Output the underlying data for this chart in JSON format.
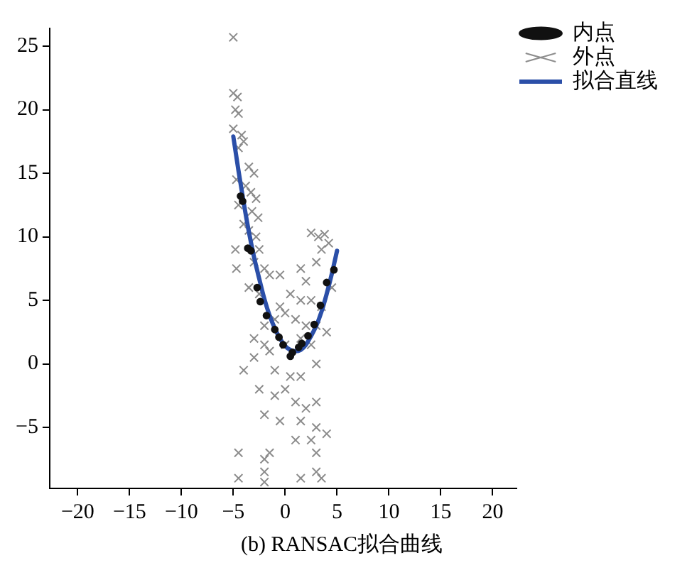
{
  "chart_data": {
    "type": "scatter",
    "title": "(b) RANSAC拟合曲线",
    "xlim": [
      -22.7,
      22.3
    ],
    "xticks": [
      {
        "value": -20,
        "label": "−20"
      },
      {
        "value": -15,
        "label": "−15"
      },
      {
        "value": -10,
        "label": "−10"
      },
      {
        "value": -5,
        "label": "−5"
      },
      0,
      5,
      10,
      15,
      20
    ],
    "ylim": [
      -9.8,
      26.4
    ],
    "yticks": [
      {
        "value": -5,
        "label": "−5"
      },
      0,
      5,
      10,
      15,
      20,
      25
    ],
    "grid": false,
    "legend": "top right",
    "series": [
      {
        "name": "内点",
        "type": "scatter",
        "marker": "circle",
        "color": "#111111",
        "x": [
          -4.3,
          -4.1,
          -3.6,
          -3.3,
          -2.7,
          -2.4,
          -1.8,
          -1,
          -0.6,
          -0.2,
          0.5,
          0.7,
          1.3,
          1.6,
          2.2,
          2.8,
          3.4,
          4,
          4.7
        ],
        "values": [
          13.2,
          12.8,
          9.1,
          8.9,
          6.0,
          4.9,
          3.8,
          2.7,
          2.1,
          1.5,
          0.6,
          0.9,
          1.3,
          1.6,
          2.2,
          3.1,
          4.6,
          6.4,
          7.4
        ]
      },
      {
        "name": "外点",
        "type": "scatter",
        "marker": "cross",
        "color": "#8c8c8c",
        "x": [
          -5,
          -5,
          -4.6,
          -4.8,
          -4.5,
          -5,
          -4.2,
          -4,
          -4.5,
          -3.5,
          -3,
          -4.7,
          -3.8,
          -3.3,
          -2.8,
          -4.5,
          -3.2,
          -2.6,
          -4,
          -3.5,
          -2.8,
          -4.8,
          -2.5,
          -3,
          -2,
          -4.7,
          -1.5,
          -3.5,
          -2.5,
          2.5,
          3.2,
          3.8,
          3.5,
          4.2,
          3,
          1.5,
          -0.5,
          2,
          4.5,
          0.5,
          1.5,
          2.5,
          3.5,
          -0.5,
          0,
          1,
          -1,
          2,
          3,
          4,
          -2,
          -3,
          -2,
          -1.5,
          0,
          1.5,
          2.5,
          -4,
          -3,
          -1,
          0.5,
          1.5,
          3,
          -2.5,
          -1,
          0,
          1,
          2,
          3,
          -2,
          -0.5,
          1.5,
          3,
          4,
          2.5,
          -4.5,
          -2,
          -1.5,
          1,
          3,
          -2,
          -4.5,
          -2,
          1.5,
          3,
          3.5
        ],
        "values": [
          25.7,
          21.3,
          21,
          20,
          19.7,
          18.5,
          18,
          17.5,
          17,
          15.5,
          15,
          14.5,
          14,
          13.5,
          13,
          12.5,
          12,
          11.5,
          11,
          10.5,
          10,
          9,
          9,
          8,
          7.5,
          7.5,
          7,
          6,
          5.5,
          10.3,
          10,
          10.2,
          9,
          9.5,
          8,
          7.5,
          7,
          6.5,
          6,
          5.5,
          5,
          5,
          4.5,
          4.5,
          4,
          3.5,
          3.5,
          3,
          3,
          2.5,
          3,
          2,
          1.5,
          1,
          1.5,
          2,
          1.5,
          -0.5,
          0.5,
          -0.5,
          -1,
          -1,
          0,
          -2,
          -2.5,
          -2,
          -3,
          -3.5,
          -3,
          -4,
          -4.5,
          -4.5,
          -5,
          -5.5,
          -6,
          -7,
          -7.5,
          -7,
          -6,
          -7,
          -8.5,
          -9,
          -9.3,
          -9,
          -8.5,
          -9
        ]
      },
      {
        "name": "拟合直线",
        "type": "line",
        "marker": "none",
        "line_style": "solid",
        "color": "#2b4fa8",
        "x": [
          -5,
          -4.5,
          -4,
          -3.5,
          -3,
          -2.5,
          -2,
          -1.5,
          -1,
          -0.5,
          0,
          0.5,
          1,
          1.5,
          2,
          2.5,
          3,
          3.5,
          4,
          4.5,
          5
        ],
        "values": [
          17.9,
          15.2,
          12.7,
          10.4,
          8.4,
          6.7,
          5.1,
          3.8,
          2.8,
          2.0,
          1.4,
          1.1,
          1.0,
          1.1,
          1.5,
          2.2,
          3.0,
          4.1,
          5.5,
          7.1,
          8.9
        ]
      }
    ]
  }
}
